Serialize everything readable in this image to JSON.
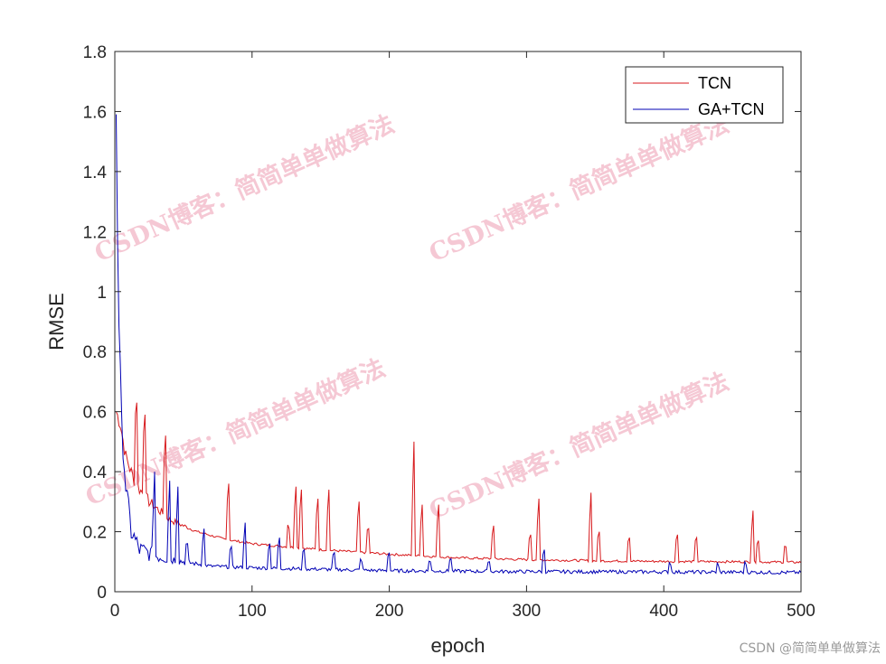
{
  "chart_data": {
    "type": "line",
    "xlabel": "epoch",
    "ylabel": "RMSE",
    "xlim": [
      0,
      500
    ],
    "ylim": [
      0,
      1.8
    ],
    "xticks": [
      0,
      100,
      200,
      300,
      400,
      500
    ],
    "yticks": [
      0,
      0.2,
      0.4,
      0.6,
      0.8,
      1,
      1.2,
      1.4,
      1.6,
      1.8
    ],
    "legend_position": "top-right",
    "series": [
      {
        "name": "TCN",
        "color": "#d7191c",
        "baseline": [
          [
            1,
            0.6
          ],
          [
            4,
            0.56
          ],
          [
            8,
            0.45
          ],
          [
            15,
            0.36
          ],
          [
            25,
            0.3
          ],
          [
            40,
            0.24
          ],
          [
            60,
            0.2
          ],
          [
            80,
            0.175
          ],
          [
            100,
            0.16
          ],
          [
            150,
            0.14
          ],
          [
            200,
            0.125
          ],
          [
            250,
            0.113
          ],
          [
            300,
            0.107
          ],
          [
            350,
            0.103
          ],
          [
            400,
            0.101
          ],
          [
            450,
            0.1
          ],
          [
            500,
            0.098
          ]
        ],
        "spikes": [
          [
            16,
            0.63
          ],
          [
            22,
            0.59
          ],
          [
            37,
            0.52
          ],
          [
            83,
            0.36
          ],
          [
            127,
            0.21
          ],
          [
            132,
            0.35
          ],
          [
            136,
            0.34
          ],
          [
            148,
            0.31
          ],
          [
            156,
            0.34
          ],
          [
            178,
            0.3
          ],
          [
            185,
            0.21
          ],
          [
            218,
            0.5
          ],
          [
            224,
            0.29
          ],
          [
            236,
            0.29
          ],
          [
            276,
            0.22
          ],
          [
            303,
            0.19
          ],
          [
            309,
            0.31
          ],
          [
            347,
            0.33
          ],
          [
            353,
            0.2
          ],
          [
            375,
            0.18
          ],
          [
            410,
            0.19
          ],
          [
            424,
            0.18
          ],
          [
            465,
            0.27
          ],
          [
            469,
            0.17
          ],
          [
            489,
            0.15
          ]
        ]
      },
      {
        "name": "GA+TCN",
        "color": "#0000b4",
        "baseline": [
          [
            1,
            1.6
          ],
          [
            2,
            1.2
          ],
          [
            3,
            0.9
          ],
          [
            5,
            0.55
          ],
          [
            8,
            0.35
          ],
          [
            12,
            0.2
          ],
          [
            18,
            0.14
          ],
          [
            30,
            0.12
          ],
          [
            50,
            0.1
          ],
          [
            70,
            0.085
          ],
          [
            100,
            0.08
          ],
          [
            150,
            0.075
          ],
          [
            200,
            0.07
          ],
          [
            300,
            0.067
          ],
          [
            400,
            0.066
          ],
          [
            500,
            0.064
          ]
        ],
        "spikes": [
          [
            29,
            0.4
          ],
          [
            40,
            0.37
          ],
          [
            46,
            0.35
          ],
          [
            53,
            0.16
          ],
          [
            65,
            0.21
          ],
          [
            85,
            0.15
          ],
          [
            95,
            0.23
          ],
          [
            113,
            0.16
          ],
          [
            120,
            0.18
          ],
          [
            138,
            0.14
          ],
          [
            160,
            0.13
          ],
          [
            180,
            0.1
          ],
          [
            200,
            0.13
          ],
          [
            230,
            0.1
          ],
          [
            245,
            0.11
          ],
          [
            273,
            0.1
          ],
          [
            313,
            0.14
          ],
          [
            405,
            0.09
          ],
          [
            440,
            0.085
          ],
          [
            460,
            0.09
          ]
        ]
      }
    ]
  },
  "watermark": "CSDN博客：简简单单做算法",
  "footer_credit": "CSDN @简简单单做算法"
}
